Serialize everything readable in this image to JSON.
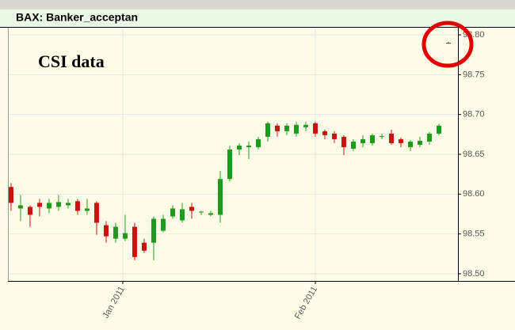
{
  "chart_data": {
    "type": "candlestick",
    "title": "BAX: Banker_acceptan",
    "annotation": "CSI data",
    "x": [
      0,
      1,
      2,
      3,
      4,
      5,
      6,
      7,
      8,
      9,
      10,
      11,
      12,
      13,
      14,
      15,
      16,
      17,
      18,
      19,
      20,
      21,
      22,
      23,
      24,
      25,
      26,
      27,
      28,
      29,
      30,
      31,
      32,
      33,
      34,
      35,
      36,
      37,
      38,
      39,
      40,
      41,
      42,
      43,
      44,
      45,
      46
    ],
    "open": [
      98.609,
      98.582,
      98.584,
      98.589,
      98.582,
      98.584,
      98.586,
      98.591,
      98.579,
      98.589,
      98.561,
      98.544,
      98.544,
      98.559,
      98.539,
      98.539,
      98.554,
      98.572,
      98.567,
      98.584,
      98.577,
      98.574,
      98.574,
      98.619,
      98.656,
      98.659,
      98.659,
      98.672,
      98.686,
      98.679,
      98.676,
      98.684,
      98.689,
      98.679,
      98.676,
      98.672,
      98.657,
      98.664,
      98.664,
      98.672,
      98.676,
      98.669,
      98.659,
      98.662,
      98.666,
      98.676,
      98.79
    ],
    "high": [
      98.614,
      98.599,
      98.586,
      98.594,
      98.594,
      98.599,
      98.594,
      98.594,
      98.594,
      98.591,
      98.566,
      98.564,
      98.574,
      98.564,
      98.544,
      98.572,
      98.574,
      98.586,
      98.589,
      98.589,
      98.579,
      98.579,
      98.629,
      98.661,
      98.664,
      98.666,
      98.672,
      98.691,
      98.689,
      98.689,
      98.691,
      98.691,
      98.691,
      98.681,
      98.679,
      98.674,
      98.669,
      98.674,
      98.676,
      98.676,
      98.681,
      98.671,
      98.668,
      98.672,
      98.678,
      98.688,
      98.791
    ],
    "low": [
      98.579,
      98.566,
      98.559,
      98.572,
      98.576,
      98.579,
      98.582,
      98.574,
      98.574,
      98.549,
      98.539,
      98.539,
      98.541,
      98.517,
      98.526,
      98.517,
      98.552,
      98.569,
      98.564,
      98.569,
      98.574,
      98.572,
      98.564,
      98.616,
      98.649,
      98.644,
      98.656,
      98.666,
      98.672,
      98.674,
      98.672,
      98.679,
      98.672,
      98.669,
      98.664,
      98.649,
      98.654,
      98.659,
      98.661,
      98.669,
      98.662,
      98.659,
      98.654,
      98.659,
      98.662,
      98.674,
      98.789
    ],
    "close": [
      98.589,
      98.586,
      98.574,
      98.584,
      98.589,
      98.59,
      98.589,
      98.579,
      98.582,
      98.564,
      98.547,
      98.559,
      98.551,
      98.521,
      98.529,
      98.569,
      98.569,
      98.582,
      98.581,
      98.579,
      98.578,
      98.576,
      98.619,
      98.656,
      98.661,
      98.661,
      98.669,
      98.689,
      98.679,
      98.686,
      98.687,
      98.687,
      98.676,
      98.674,
      98.669,
      98.659,
      98.666,
      98.669,
      98.674,
      98.673,
      98.664,
      98.664,
      98.666,
      98.667,
      98.676,
      98.686,
      98.79
    ],
    "up_color": "#1f9a1f",
    "down_color": "#cc1111",
    "flat_color": "#444444",
    "xlim": [
      -0.33,
      47
    ],
    "xticks": [
      {
        "value": 11.75,
        "label": "Jan 2011"
      },
      {
        "value": 32,
        "label": "Feb 2011"
      }
    ],
    "ylim": [
      98.491,
      98.809
    ],
    "yticks": [
      {
        "value": 98.5,
        "label": "98.50"
      },
      98.55,
      {
        "value": 98.6,
        "label": "98.60"
      },
      98.65,
      {
        "value": 98.7,
        "label": "98.70"
      },
      98.75,
      {
        "value": 98.8,
        "label": "98.80"
      }
    ],
    "grid": true
  }
}
